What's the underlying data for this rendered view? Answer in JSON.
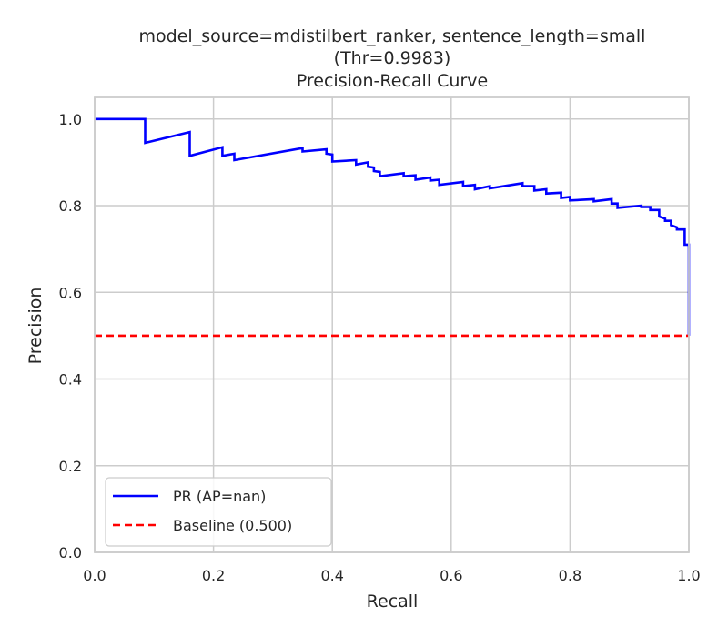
{
  "chart_data": {
    "type": "line",
    "title_lines": [
      "model_source=mdistilbert_ranker, sentence_length=small",
      "(Thr=0.9983)",
      "Precision-Recall Curve"
    ],
    "xlabel": "Recall",
    "ylabel": "Precision",
    "xlim": [
      0,
      1
    ],
    "ylim": [
      0,
      1.05
    ],
    "x_ticks": [
      0.0,
      0.2,
      0.4,
      0.6,
      0.8,
      1.0
    ],
    "x_tick_labels": [
      "0.0",
      "0.2",
      "0.4",
      "0.6",
      "0.8",
      "1.0"
    ],
    "y_ticks": [
      0.0,
      0.2,
      0.4,
      0.6,
      0.8,
      1.0
    ],
    "y_tick_labels": [
      "0.0",
      "0.2",
      "0.4",
      "0.6",
      "0.8",
      "1.0"
    ],
    "grid": true,
    "legend_position": "lower-left",
    "series": [
      {
        "name": "PR (AP=nan)",
        "color": "#0000ff",
        "style": "solid",
        "points": [
          [
            0.0,
            1.0
          ],
          [
            0.085,
            1.0
          ],
          [
            0.085,
            0.945
          ],
          [
            0.16,
            0.97
          ],
          [
            0.16,
            0.915
          ],
          [
            0.215,
            0.935
          ],
          [
            0.215,
            0.915
          ],
          [
            0.235,
            0.92
          ],
          [
            0.235,
            0.905
          ],
          [
            0.35,
            0.933
          ],
          [
            0.35,
            0.925
          ],
          [
            0.39,
            0.93
          ],
          [
            0.39,
            0.92
          ],
          [
            0.4,
            0.918
          ],
          [
            0.4,
            0.902
          ],
          [
            0.44,
            0.905
          ],
          [
            0.44,
            0.895
          ],
          [
            0.46,
            0.9
          ],
          [
            0.46,
            0.89
          ],
          [
            0.47,
            0.888
          ],
          [
            0.47,
            0.88
          ],
          [
            0.48,
            0.878
          ],
          [
            0.48,
            0.868
          ],
          [
            0.52,
            0.875
          ],
          [
            0.52,
            0.868
          ],
          [
            0.54,
            0.87
          ],
          [
            0.54,
            0.86
          ],
          [
            0.565,
            0.865
          ],
          [
            0.565,
            0.858
          ],
          [
            0.58,
            0.86
          ],
          [
            0.58,
            0.848
          ],
          [
            0.62,
            0.855
          ],
          [
            0.62,
            0.845
          ],
          [
            0.64,
            0.848
          ],
          [
            0.64,
            0.838
          ],
          [
            0.665,
            0.845
          ],
          [
            0.665,
            0.84
          ],
          [
            0.72,
            0.852
          ],
          [
            0.72,
            0.845
          ],
          [
            0.74,
            0.845
          ],
          [
            0.74,
            0.835
          ],
          [
            0.76,
            0.838
          ],
          [
            0.76,
            0.828
          ],
          [
            0.785,
            0.83
          ],
          [
            0.785,
            0.818
          ],
          [
            0.8,
            0.82
          ],
          [
            0.8,
            0.812
          ],
          [
            0.84,
            0.815
          ],
          [
            0.84,
            0.81
          ],
          [
            0.87,
            0.815
          ],
          [
            0.87,
            0.805
          ],
          [
            0.88,
            0.805
          ],
          [
            0.88,
            0.795
          ],
          [
            0.92,
            0.8
          ],
          [
            0.92,
            0.797
          ],
          [
            0.935,
            0.797
          ],
          [
            0.935,
            0.79
          ],
          [
            0.95,
            0.79
          ],
          [
            0.95,
            0.775
          ],
          [
            0.96,
            0.77
          ],
          [
            0.96,
            0.765
          ],
          [
            0.97,
            0.765
          ],
          [
            0.97,
            0.755
          ],
          [
            0.98,
            0.75
          ],
          [
            0.98,
            0.745
          ],
          [
            0.993,
            0.745
          ],
          [
            0.993,
            0.71
          ],
          [
            1.0,
            0.71
          ],
          [
            1.0,
            0.5
          ]
        ]
      },
      {
        "name": "Baseline (0.500)",
        "color": "#ff0000",
        "style": "dashed",
        "points": [
          [
            0.0,
            0.5
          ],
          [
            1.0,
            0.5
          ]
        ]
      }
    ]
  }
}
